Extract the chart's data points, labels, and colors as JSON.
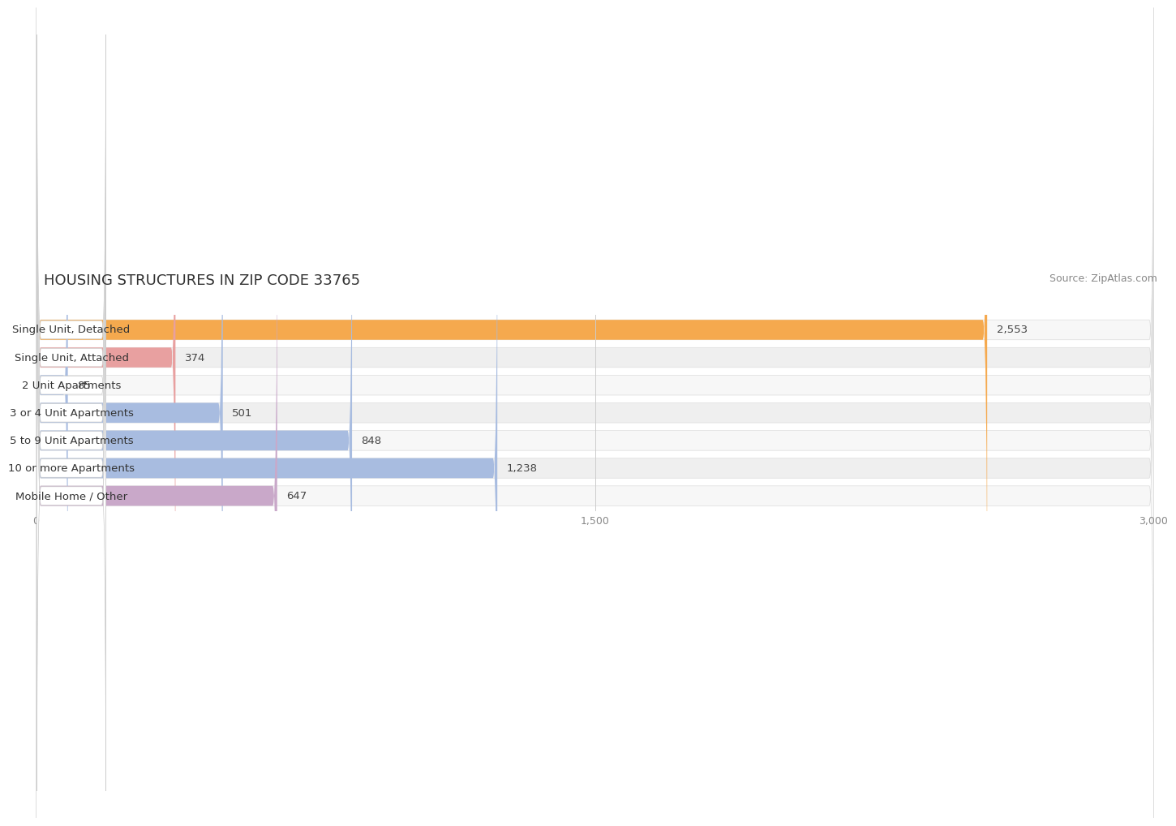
{
  "title": "HOUSING STRUCTURES IN ZIP CODE 33765",
  "source": "Source: ZipAtlas.com",
  "categories": [
    "Single Unit, Detached",
    "Single Unit, Attached",
    "2 Unit Apartments",
    "3 or 4 Unit Apartments",
    "5 to 9 Unit Apartments",
    "10 or more Apartments",
    "Mobile Home / Other"
  ],
  "values": [
    2553,
    374,
    85,
    501,
    848,
    1238,
    647
  ],
  "bar_colors": [
    "#f5a94e",
    "#e8a0a0",
    "#a8bce0",
    "#a8bce0",
    "#a8bce0",
    "#a8bce0",
    "#c9a8c9"
  ],
  "row_bg_colors": [
    "#f7f7f7",
    "#efefef",
    "#f7f7f7",
    "#efefef",
    "#f7f7f7",
    "#efefef",
    "#f7f7f7"
  ],
  "xlim": [
    0,
    3000
  ],
  "xticks": [
    0,
    1500,
    3000
  ],
  "xticklabels": [
    "0",
    "1,500",
    "3,000"
  ],
  "title_fontsize": 13,
  "source_fontsize": 9,
  "label_fontsize": 9.5,
  "value_fontsize": 9.5,
  "bg_color": "#ffffff",
  "label_pill_color": "#ffffff",
  "label_pill_edge": "#dddddd"
}
